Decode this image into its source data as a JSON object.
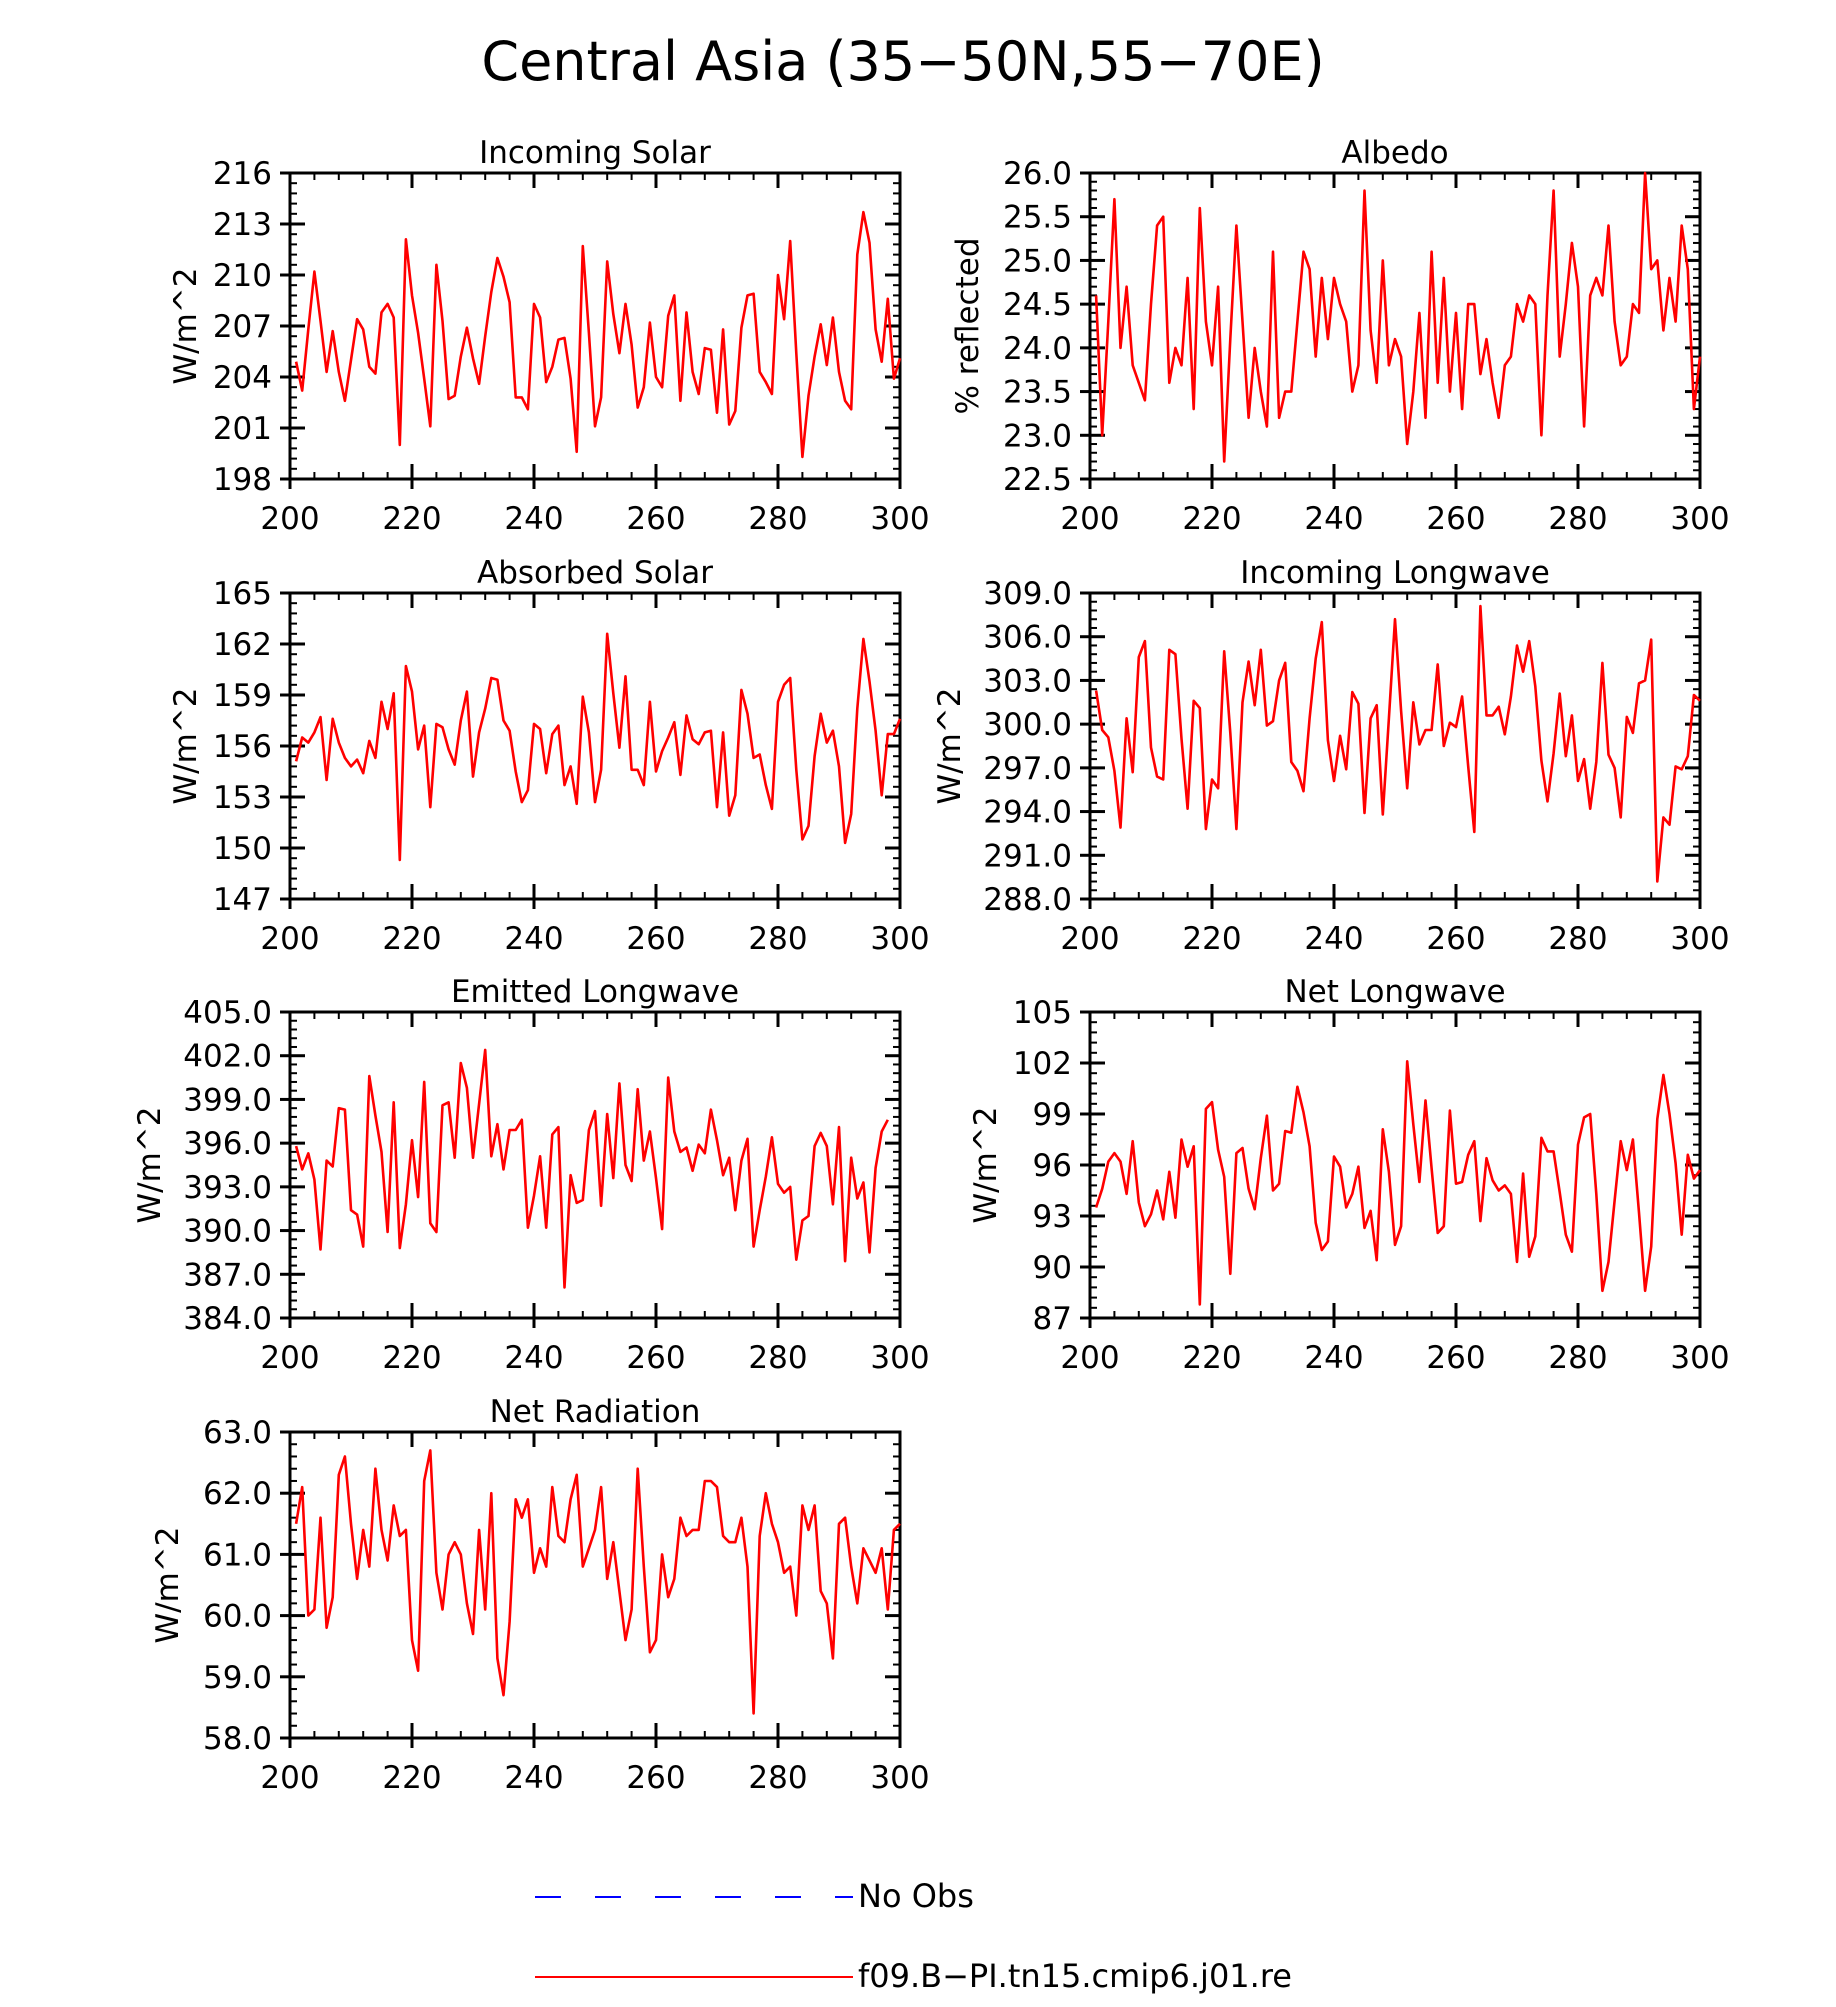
{
  "figure": {
    "title": "Central Asia (35−50N,55−70E)",
    "colors": {
      "model": "#ff0000",
      "obs": "#0000ff",
      "axis": "#000000"
    }
  },
  "legend": {
    "obs_label": "No Obs",
    "model_label": "f09.B−PI.tn15.cmip6.j01.re"
  },
  "chart_data": [
    {
      "type": "line",
      "title": "Incoming Solar",
      "ylabel": "W/m^2",
      "xlim": [
        200,
        300
      ],
      "ylim": [
        198,
        216
      ],
      "xticks": [
        200,
        220,
        240,
        260,
        280,
        300
      ],
      "xtick_labels": [
        "200",
        "220",
        "240",
        "260",
        "280",
        "300"
      ],
      "yticks": [
        198,
        201,
        204,
        207,
        210,
        213,
        216
      ],
      "ytick_labels": [
        "198",
        "201",
        "204",
        "207",
        "210",
        "213",
        "216"
      ],
      "x_start": 201,
      "x_step": 1,
      "series": [
        {
          "values": [
            204.9,
            203.2,
            206.8,
            210.2,
            207.3,
            204.3,
            206.7,
            204.3,
            202.6,
            205.0,
            207.4,
            206.8,
            204.6,
            204.2,
            207.8,
            208.3,
            207.5,
            200.0,
            212.1,
            208.8,
            206.6,
            203.9,
            201.1,
            210.6,
            207.3,
            202.7,
            202.9,
            205.2,
            206.9,
            205.1,
            203.6,
            206.4,
            209.0,
            211.0,
            209.9,
            208.4,
            202.8,
            202.8,
            202.1,
            208.3,
            207.5,
            203.7,
            204.6,
            206.2,
            206.3,
            203.9,
            199.6,
            211.7,
            206.6,
            201.1,
            202.8,
            210.8,
            207.7,
            205.4,
            208.3,
            205.9,
            202.2,
            203.4,
            207.2,
            204.0,
            203.4,
            207.6,
            208.8,
            202.6,
            207.8,
            204.3,
            203.0,
            205.7,
            205.6,
            201.9,
            206.8,
            201.2,
            202.0,
            206.9,
            208.8,
            208.9,
            204.3,
            203.7,
            203.0,
            210.0,
            207.4,
            212.0,
            205.4,
            199.3,
            202.9,
            205.2,
            207.1,
            204.7,
            207.5,
            204.3,
            202.6,
            202.1,
            211.2,
            213.7,
            211.9,
            206.8,
            204.9,
            208.6,
            203.9,
            205.1
          ]
        }
      ]
    },
    {
      "type": "line",
      "title": "Albedo",
      "ylabel": "% reflected",
      "xlim": [
        200,
        300
      ],
      "ylim": [
        22.5,
        26.0
      ],
      "xticks": [
        200,
        220,
        240,
        260,
        280,
        300
      ],
      "xtick_labels": [
        "200",
        "220",
        "240",
        "260",
        "280",
        "300"
      ],
      "yticks": [
        22.5,
        23.0,
        23.5,
        24.0,
        24.5,
        25.0,
        25.5,
        26.0
      ],
      "ytick_labels": [
        "22.5",
        "23.0",
        "23.5",
        "24.0",
        "24.5",
        "25.0",
        "25.5",
        "26.0"
      ],
      "x_start": 201,
      "x_step": 1,
      "series": [
        {
          "values": [
            24.6,
            23.0,
            24.3,
            25.7,
            24.0,
            24.7,
            23.8,
            23.6,
            23.4,
            24.5,
            25.4,
            25.5,
            23.6,
            24.0,
            23.8,
            24.8,
            23.3,
            25.6,
            24.3,
            23.8,
            24.7,
            22.7,
            24.1,
            25.4,
            24.3,
            23.2,
            24.0,
            23.5,
            23.1,
            25.1,
            23.2,
            23.5,
            23.5,
            24.3,
            25.1,
            24.9,
            23.9,
            24.8,
            24.1,
            24.8,
            24.5,
            24.3,
            23.5,
            23.8,
            25.8,
            24.2,
            23.6,
            25.0,
            23.8,
            24.1,
            23.9,
            22.9,
            23.5,
            24.4,
            23.2,
            25.1,
            23.6,
            24.8,
            23.5,
            24.4,
            23.3,
            24.5,
            24.5,
            23.7,
            24.1,
            23.6,
            23.2,
            23.8,
            23.9,
            24.5,
            24.3,
            24.6,
            24.5,
            23.0,
            24.6,
            25.8,
            23.9,
            24.5,
            25.2,
            24.7,
            23.1,
            24.6,
            24.8,
            24.6,
            25.4,
            24.3,
            23.8,
            23.9,
            24.5,
            24.4,
            26.0,
            24.9,
            25.0,
            24.2,
            24.8,
            24.3,
            25.4,
            24.9,
            23.3,
            23.9
          ]
        }
      ]
    },
    {
      "type": "line",
      "title": "Absorbed Solar",
      "ylabel": "W/m^2",
      "xlim": [
        200,
        300
      ],
      "ylim": [
        147,
        165
      ],
      "xticks": [
        200,
        220,
        240,
        260,
        280,
        300
      ],
      "xtick_labels": [
        "200",
        "220",
        "240",
        "260",
        "280",
        "300"
      ],
      "yticks": [
        147,
        150,
        153,
        156,
        159,
        162,
        165
      ],
      "ytick_labels": [
        "147",
        "150",
        "153",
        "156",
        "159",
        "162",
        "165"
      ],
      "x_start": 201,
      "x_step": 1,
      "series": [
        {
          "values": [
            155.1,
            156.5,
            156.2,
            156.8,
            157.7,
            154.0,
            157.6,
            156.2,
            155.3,
            154.8,
            155.2,
            154.4,
            156.3,
            155.3,
            158.6,
            157.0,
            159.1,
            149.3,
            160.7,
            159.2,
            155.8,
            157.2,
            152.4,
            157.3,
            157.1,
            155.8,
            154.9,
            157.5,
            159.2,
            154.2,
            156.8,
            158.2,
            160.0,
            159.9,
            157.5,
            156.9,
            154.5,
            152.7,
            153.4,
            157.3,
            157.0,
            154.4,
            156.7,
            157.2,
            153.7,
            154.8,
            152.6,
            158.9,
            156.8,
            152.7,
            154.6,
            162.6,
            159.1,
            155.9,
            160.1,
            154.6,
            154.6,
            153.7,
            158.6,
            154.5,
            155.7,
            156.5,
            157.4,
            154.3,
            157.8,
            156.4,
            156.1,
            156.8,
            156.9,
            152.4,
            156.8,
            151.9,
            153.1,
            159.3,
            157.9,
            155.3,
            155.5,
            153.7,
            152.3,
            158.6,
            159.6,
            160.0,
            154.6,
            150.5,
            151.3,
            155.4,
            157.9,
            156.2,
            156.9,
            154.8,
            150.3,
            152.0,
            158.2,
            162.3,
            159.8,
            156.9,
            153.1,
            156.7,
            156.7,
            157.6
          ]
        }
      ]
    },
    {
      "type": "line",
      "title": "Incoming Longwave",
      "ylabel": "W/m^2",
      "xlim": [
        200,
        300
      ],
      "ylim": [
        288.0,
        309.0
      ],
      "xticks": [
        200,
        220,
        240,
        260,
        280,
        300
      ],
      "xtick_labels": [
        "200",
        "220",
        "240",
        "260",
        "280",
        "300"
      ],
      "yticks": [
        288.0,
        291.0,
        294.0,
        297.0,
        300.0,
        303.0,
        306.0,
        309.0
      ],
      "ytick_labels": [
        "288.0",
        "291.0",
        "294.0",
        "297.0",
        "300.0",
        "303.0",
        "306.0",
        "309.0"
      ],
      "x_start": 201,
      "x_step": 1,
      "series": [
        {
          "values": [
            302.3,
            299.6,
            299.1,
            296.8,
            292.9,
            300.4,
            296.7,
            304.6,
            305.7,
            298.4,
            296.4,
            296.2,
            305.1,
            304.8,
            299.0,
            294.2,
            301.6,
            301.1,
            292.8,
            296.2,
            295.6,
            305.0,
            299.4,
            292.8,
            301.5,
            304.3,
            301.3,
            305.1,
            299.9,
            300.2,
            303.0,
            304.2,
            297.4,
            296.8,
            295.4,
            300.4,
            304.5,
            307.0,
            298.9,
            296.1,
            299.2,
            296.9,
            302.2,
            301.4,
            293.9,
            300.4,
            301.3,
            293.8,
            300.4,
            307.2,
            300.9,
            295.6,
            301.5,
            298.6,
            299.6,
            299.6,
            304.1,
            298.5,
            300.1,
            299.8,
            301.9,
            297.1,
            292.6,
            308.1,
            300.6,
            300.6,
            301.2,
            299.3,
            301.9,
            305.4,
            303.6,
            305.7,
            302.6,
            297.5,
            294.7,
            298.0,
            302.1,
            297.8,
            300.6,
            296.1,
            297.6,
            294.2,
            297.4,
            304.2,
            297.9,
            297.0,
            293.6,
            300.5,
            299.4,
            302.8,
            303.0,
            305.8,
            289.2,
            293.6,
            293.1,
            297.1,
            296.9,
            297.8,
            302.0,
            301.6
          ]
        }
      ]
    },
    {
      "type": "line",
      "title": "Emitted Longwave",
      "ylabel": "W/m^2",
      "xlim": [
        200,
        300
      ],
      "ylim": [
        384.0,
        405.0
      ],
      "xticks": [
        200,
        220,
        240,
        260,
        280,
        300
      ],
      "xtick_labels": [
        "200",
        "220",
        "240",
        "260",
        "280",
        "300"
      ],
      "yticks": [
        384.0,
        387.0,
        390.0,
        393.0,
        396.0,
        399.0,
        402.0,
        405.0
      ],
      "ytick_labels": [
        "384.0",
        "387.0",
        "390.0",
        "393.0",
        "396.0",
        "399.0",
        "402.0",
        "405.0"
      ],
      "x_start": 201,
      "x_step": 1,
      "series": [
        {
          "values": [
            395.8,
            394.2,
            395.3,
            393.5,
            388.7,
            394.8,
            394.4,
            398.4,
            398.3,
            391.4,
            391.1,
            388.9,
            400.6,
            397.9,
            395.4,
            389.9,
            398.8,
            388.8,
            391.8,
            396.2,
            392.3,
            400.2,
            390.5,
            389.9,
            398.6,
            398.8,
            395.0,
            401.5,
            399.8,
            395.0,
            398.7,
            402.4,
            395.1,
            397.3,
            394.2,
            396.9,
            396.9,
            397.6,
            390.2,
            392.4,
            395.1,
            390.2,
            396.6,
            397.1,
            386.1,
            393.8,
            391.9,
            392.1,
            396.9,
            398.2,
            391.7,
            398.0,
            393.6,
            400.1,
            394.5,
            393.4,
            399.7,
            394.8,
            396.8,
            393.6,
            390.1,
            400.5,
            396.8,
            395.4,
            395.7,
            394.1,
            395.9,
            395.3,
            398.3,
            396.2,
            393.8,
            395.0,
            391.4,
            394.8,
            396.3,
            388.9,
            391.4,
            393.7,
            396.4,
            393.2,
            392.6,
            393.0,
            388.0,
            390.7,
            391.0,
            395.8,
            396.7,
            395.8,
            391.8,
            397.1,
            387.9,
            395.0,
            392.2,
            393.3,
            388.5,
            394.3,
            396.8,
            397.6
          ]
        }
      ]
    },
    {
      "type": "line",
      "title": "Net Longwave",
      "ylabel": "W/m^2",
      "xlim": [
        200,
        300
      ],
      "ylim": [
        87,
        105
      ],
      "xticks": [
        200,
        220,
        240,
        260,
        280,
        300
      ],
      "xtick_labels": [
        "200",
        "220",
        "240",
        "260",
        "280",
        "300"
      ],
      "yticks": [
        87,
        90,
        93,
        96,
        99,
        102,
        105
      ],
      "ytick_labels": [
        "87",
        "90",
        "93",
        "96",
        "99",
        "102",
        "105"
      ],
      "x_start": 201,
      "x_step": 1,
      "series": [
        {
          "values": [
            93.5,
            94.6,
            96.2,
            96.7,
            96.2,
            94.3,
            97.4,
            93.8,
            92.4,
            93.1,
            94.5,
            92.8,
            95.6,
            92.9,
            97.5,
            95.9,
            97.1,
            87.8,
            99.3,
            99.7,
            96.9,
            95.3,
            89.6,
            96.7,
            97.0,
            94.6,
            93.4,
            96.4,
            98.9,
            94.5,
            94.9,
            98.0,
            97.9,
            100.6,
            99.1,
            97.1,
            92.6,
            91.0,
            91.5,
            96.5,
            95.9,
            93.5,
            94.3,
            95.9,
            92.3,
            93.3,
            90.4,
            98.1,
            95.6,
            91.3,
            92.4,
            102.1,
            98.4,
            95.0,
            99.8,
            95.8,
            92.0,
            92.4,
            99.2,
            94.9,
            95.0,
            96.6,
            97.4,
            92.7,
            96.4,
            95.1,
            94.5,
            94.8,
            94.3,
            90.3,
            95.5,
            90.6,
            91.8,
            97.6,
            96.8,
            96.8,
            94.4,
            91.9,
            90.9,
            97.2,
            98.8,
            99.0,
            94.3,
            88.6,
            90.3,
            93.9,
            97.4,
            95.7,
            97.5,
            93.2,
            88.6,
            91.2,
            98.7,
            101.3,
            99.0,
            96.1,
            91.9,
            96.6,
            95.2,
            95.7
          ]
        }
      ]
    },
    {
      "type": "line",
      "title": "Net Radiation",
      "ylabel": "W/m^2",
      "xlim": [
        200,
        300
      ],
      "ylim": [
        58.0,
        63.0
      ],
      "xticks": [
        200,
        220,
        240,
        260,
        280,
        300
      ],
      "xtick_labels": [
        "200",
        "220",
        "240",
        "260",
        "280",
        "300"
      ],
      "yticks": [
        58.0,
        59.0,
        60.0,
        61.0,
        62.0,
        63.0
      ],
      "ytick_labels": [
        "58.0",
        "59.0",
        "60.0",
        "61.0",
        "62.0",
        "63.0"
      ],
      "x_start": 201,
      "x_step": 1,
      "series": [
        {
          "values": [
            61.5,
            62.1,
            60.0,
            60.1,
            61.6,
            59.8,
            60.3,
            62.3,
            62.6,
            61.5,
            60.6,
            61.4,
            60.8,
            62.4,
            61.4,
            60.9,
            61.8,
            61.3,
            61.4,
            59.6,
            59.1,
            62.2,
            62.7,
            60.7,
            60.1,
            61.0,
            61.2,
            61.0,
            60.2,
            59.7,
            61.4,
            60.1,
            62.0,
            59.3,
            58.7,
            59.9,
            61.9,
            61.6,
            61.9,
            60.7,
            61.1,
            60.8,
            62.1,
            61.3,
            61.2,
            61.9,
            62.3,
            60.8,
            61.1,
            61.4,
            62.1,
            60.6,
            61.2,
            60.4,
            59.6,
            60.1,
            62.4,
            60.8,
            59.4,
            59.6,
            61.0,
            60.3,
            60.6,
            61.6,
            61.3,
            61.4,
            61.4,
            62.2,
            62.2,
            62.1,
            61.3,
            61.2,
            61.2,
            61.6,
            60.8,
            58.4,
            61.3,
            62.0,
            61.5,
            61.2,
            60.7,
            60.8,
            60.0,
            61.8,
            61.4,
            61.8,
            60.4,
            60.2,
            59.3,
            61.5,
            61.6,
            60.8,
            60.2,
            61.1,
            60.9,
            60.7,
            61.1,
            60.1,
            61.4,
            61.5
          ]
        }
      ]
    }
  ]
}
